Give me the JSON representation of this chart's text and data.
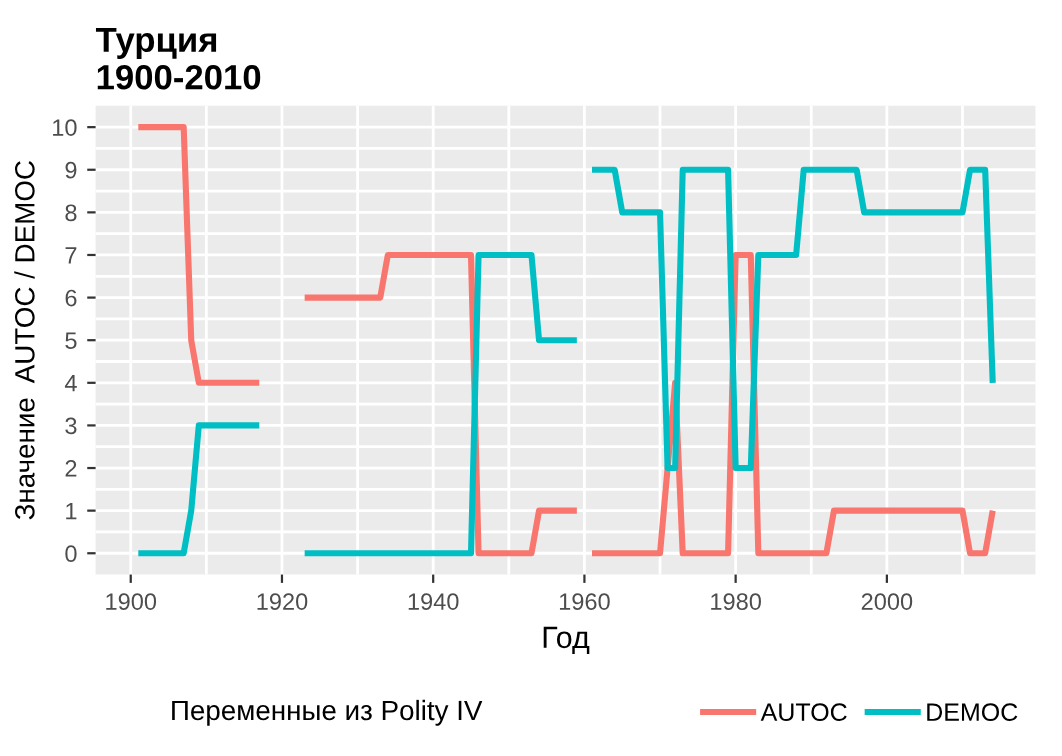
{
  "chart_data": {
    "type": "line",
    "title": "Турция\n1900-2010",
    "xlabel": "Год",
    "ylabel": "Значение  AUTOC / DEMOC",
    "legend_title": "Переменные из Polity IV",
    "legend": "bottom",
    "grid": true,
    "line_style": "solid",
    "xlim": [
      1895.35,
      2019.65
    ],
    "xticks": [
      1900,
      1920,
      1940,
      1960,
      1980,
      2000
    ],
    "ylim": [
      -0.5,
      10.5
    ],
    "yticks": [
      0,
      1,
      2,
      3,
      4,
      5,
      6,
      7,
      8,
      9,
      10
    ],
    "series": [
      {
        "name": "AUTOC",
        "color": "#f8766d",
        "x": [
          1901,
          1907,
          1908,
          1909,
          1917,
          1920,
          1923,
          1933,
          1934,
          1945,
          1946,
          1953,
          1954,
          1959,
          1960,
          1961,
          1970,
          1971,
          1972,
          1973,
          1979,
          1980,
          1982,
          1983,
          1992,
          1993,
          2010,
          2011,
          2013,
          2014
        ],
        "values": [
          10,
          10,
          5,
          4,
          4,
          null,
          6,
          6,
          7,
          7,
          0,
          0,
          1,
          1,
          null,
          0,
          0,
          2,
          4,
          0,
          0,
          7,
          7,
          0,
          0,
          1,
          1,
          0,
          0,
          1
        ]
      },
      {
        "name": "DEMOC",
        "color": "#00bfc4",
        "x": [
          1901,
          1907,
          1908,
          1909,
          1917,
          1920,
          1923,
          1945,
          1946,
          1953,
          1954,
          1959,
          1960,
          1961,
          1964,
          1965,
          1970,
          1971,
          1972,
          1973,
          1979,
          1980,
          1982,
          1983,
          1988,
          1989,
          1996,
          1997,
          2010,
          2011,
          2013,
          2014
        ],
        "values": [
          0,
          0,
          1,
          3,
          3,
          null,
          0,
          0,
          7,
          7,
          5,
          5,
          null,
          9,
          9,
          8,
          8,
          2,
          2,
          9,
          9,
          2,
          2,
          7,
          7,
          9,
          9,
          8,
          8,
          9,
          9,
          4
        ]
      }
    ]
  }
}
